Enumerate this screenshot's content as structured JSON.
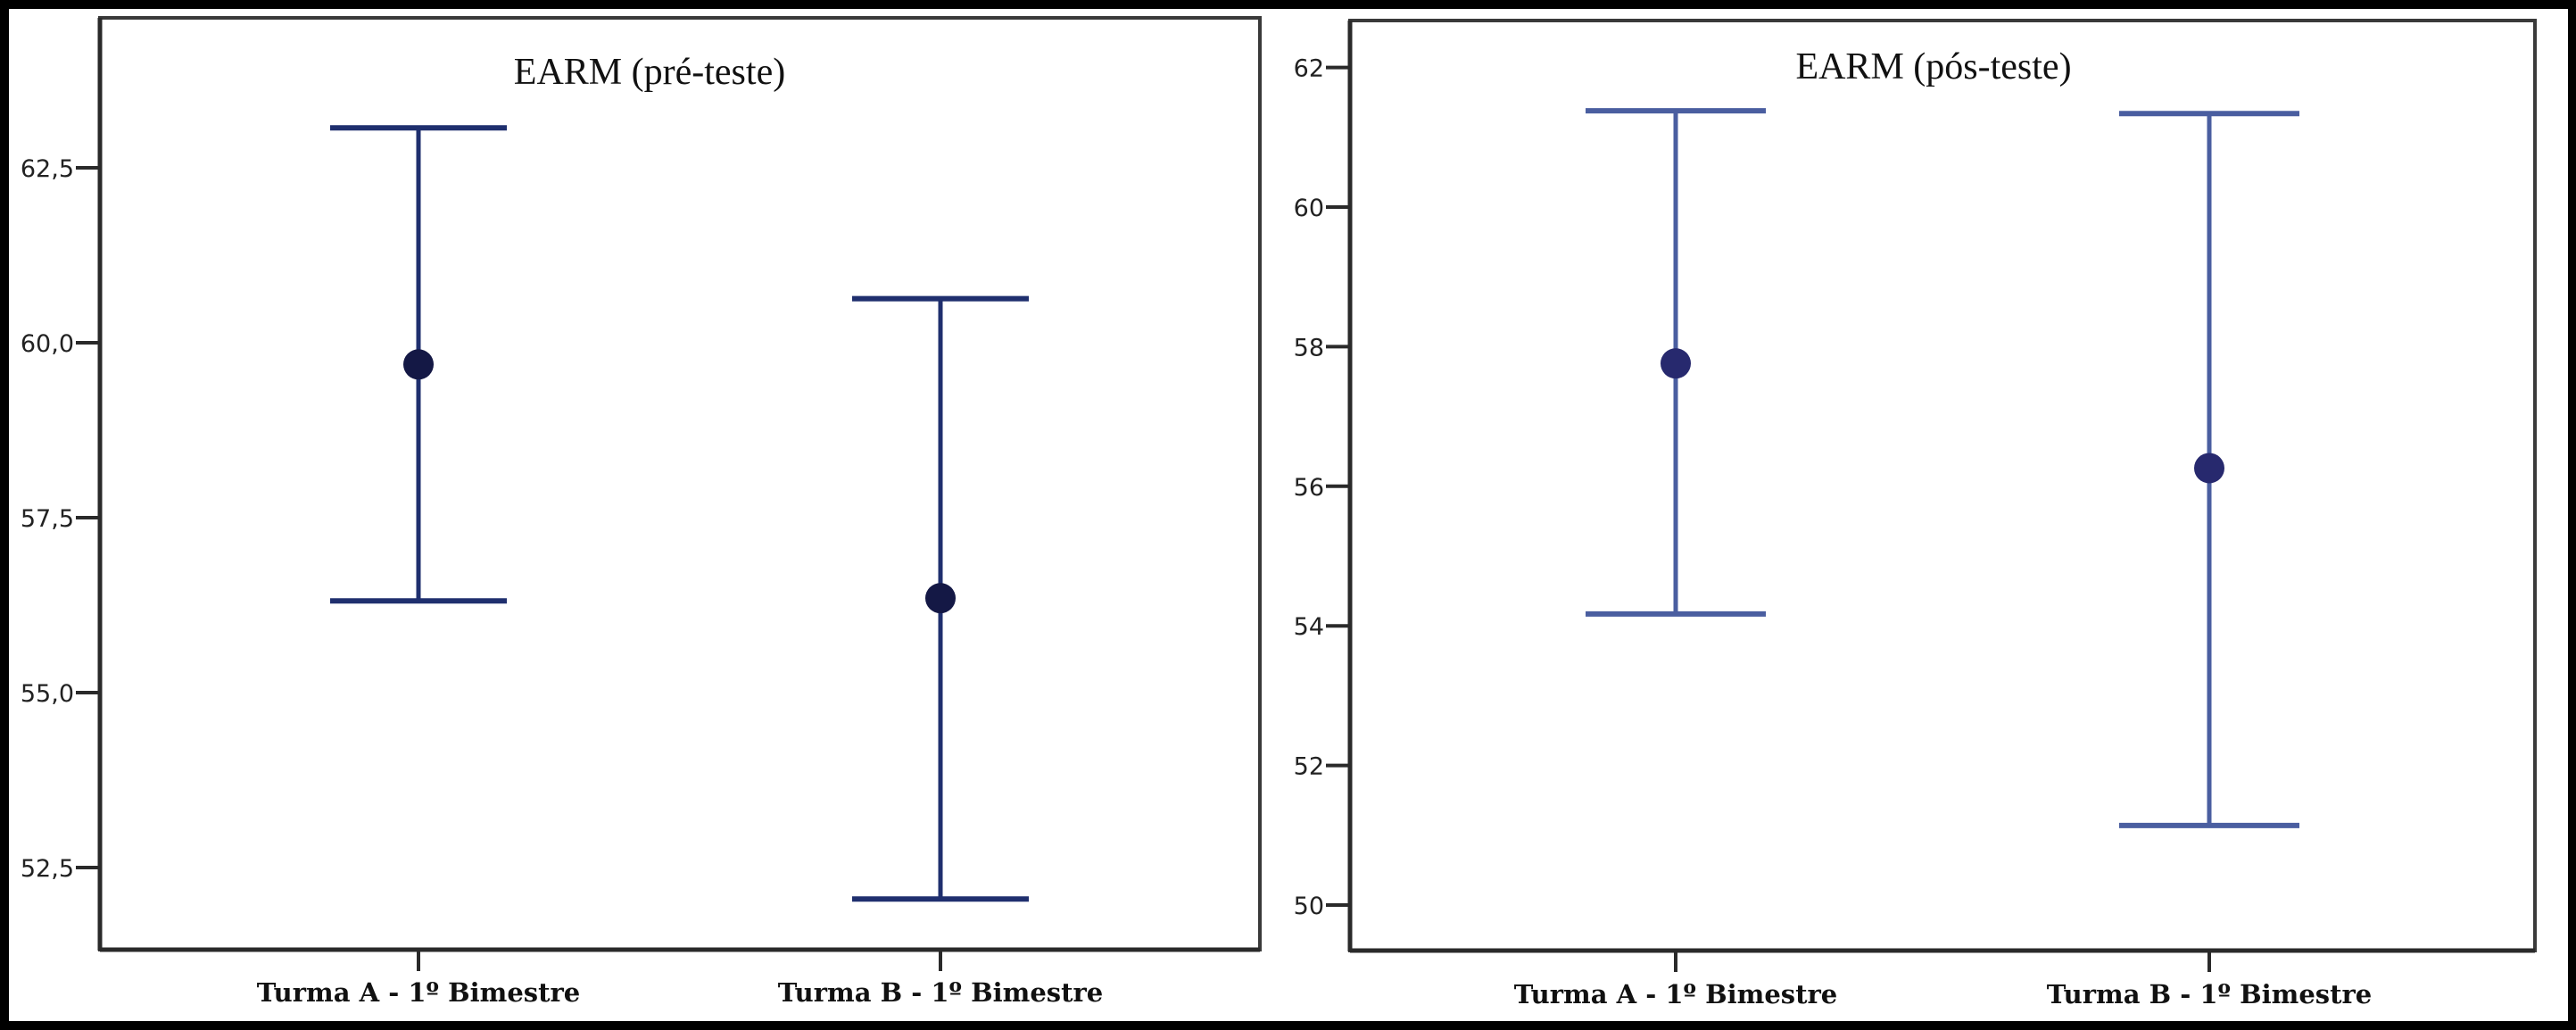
{
  "figure": {
    "background": "#000000",
    "panel_background": "#ffffff"
  },
  "chart_data": [
    {
      "type": "errorbar",
      "title": "EARM (pré-teste)",
      "xlabel": "",
      "ylabel": "",
      "categories": [
        "Turma A - 1º Bimestre",
        "Turma B - 1º Bimestre"
      ],
      "yticks": [
        52.5,
        55.0,
        57.5,
        60.0,
        62.5
      ],
      "ytick_labels": [
        "52,5",
        "55,0",
        "57,5",
        "60,0",
        "62,5"
      ],
      "ylim": [
        51.3,
        64.5
      ],
      "series": [
        {
          "name": "EARM (pré-teste)",
          "mean": [
            59.69,
            56.35
          ],
          "lower": [
            56.31,
            52.05
          ],
          "upper": [
            63.07,
            60.63
          ]
        }
      ],
      "colors": {
        "line": "#1f2f6e",
        "marker": "#141845"
      },
      "grid": false,
      "legend": null
    },
    {
      "type": "errorbar",
      "title": "EARM (pós-teste)",
      "xlabel": "",
      "ylabel": "",
      "categories": [
        "Turma A - 1º Bimestre",
        "Turma B - 1º Bimestre"
      ],
      "yticks": [
        50,
        52,
        54,
        56,
        58,
        60,
        62
      ],
      "ytick_labels": [
        "50",
        "52",
        "54",
        "56",
        "58",
        "60",
        "62"
      ],
      "ylim": [
        49.4,
        62.65
      ],
      "series": [
        {
          "name": "EARM (pós-teste)",
          "mean": [
            57.76,
            56.26
          ],
          "lower": [
            54.17,
            51.14
          ],
          "upper": [
            61.38,
            61.34
          ]
        }
      ],
      "colors": {
        "line": "#4a5ea0",
        "marker": "#27296e"
      },
      "grid": false,
      "legend": null
    }
  ]
}
